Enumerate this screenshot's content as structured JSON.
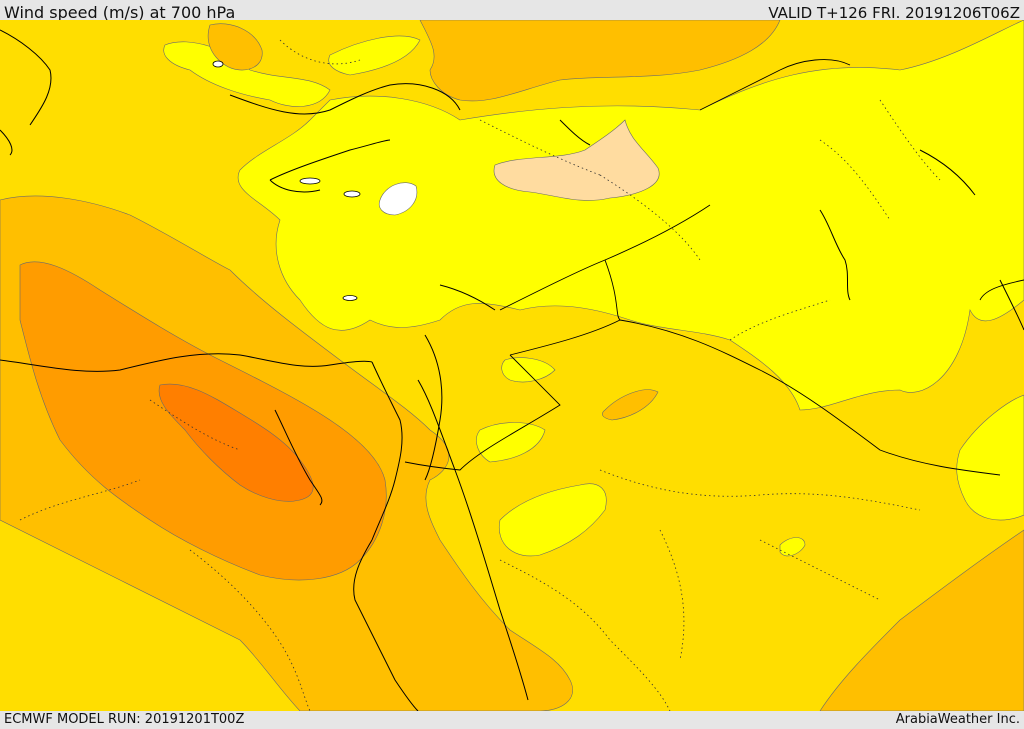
{
  "header": {
    "title": "Wind speed (m/s) at 700 hPa",
    "valid": "VALID T+126 FRI. 20191206T06Z"
  },
  "footer": {
    "model_run": "ECMWF MODEL RUN: 20191201T00Z",
    "credit": "ArabiaWeather Inc."
  },
  "map": {
    "field": "wind speed at 700 hPa",
    "palette": {
      "white": "#ffffff",
      "peach": "#ffdca0",
      "yellow": "#ffff00",
      "gold": "#ffde00",
      "amber": "#ffbf00",
      "orange": "#ff9c00",
      "dark_orange": "#ff7f00"
    }
  }
}
